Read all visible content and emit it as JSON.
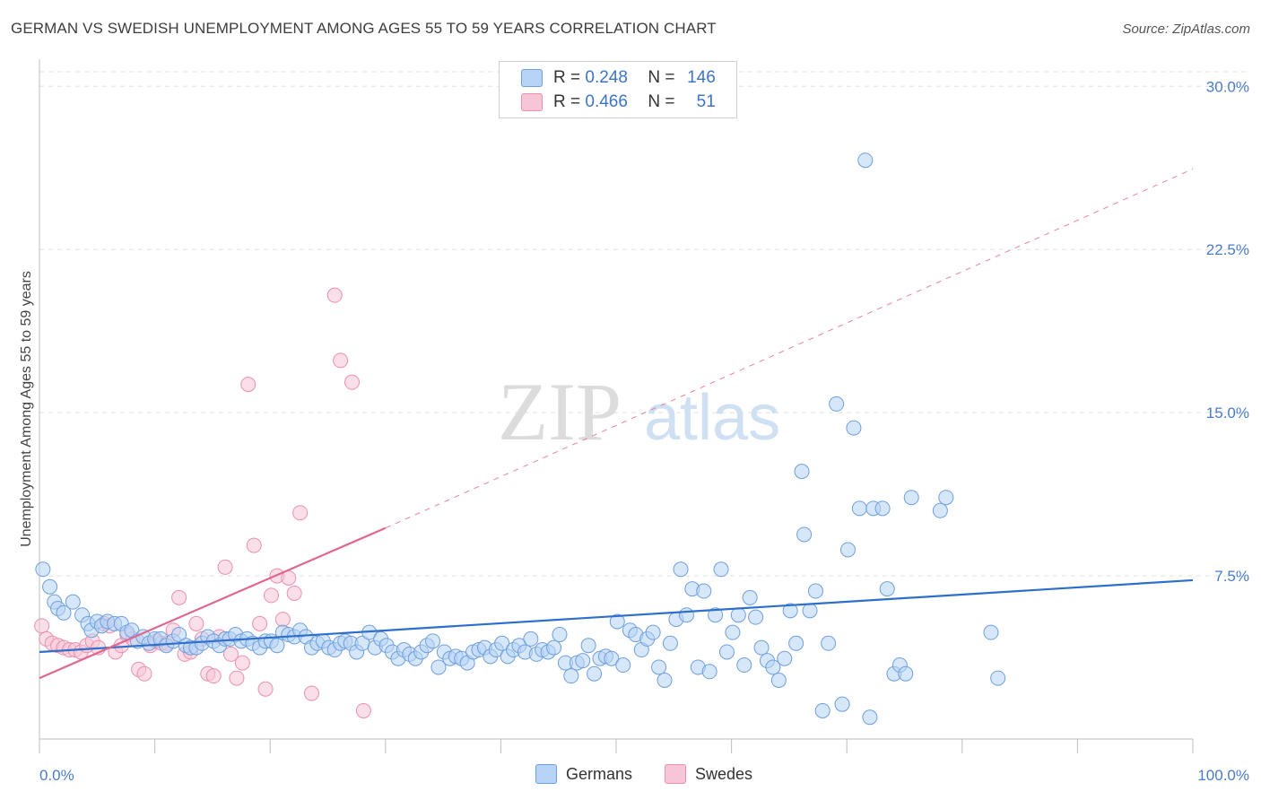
{
  "title": "GERMAN VS SWEDISH UNEMPLOYMENT AMONG AGES 55 TO 59 YEARS CORRELATION CHART",
  "source": "Source: ZipAtlas.com",
  "watermark": {
    "zip": "ZIP",
    "atlas": "atlas"
  },
  "legend_top": [
    {
      "r_label": "R =",
      "r_value": "0.248",
      "n_label": "N =",
      "n_value": "146"
    },
    {
      "r_label": "R =",
      "r_value": "0.466",
      "n_label": "N =",
      "n_value": "51"
    }
  ],
  "legend_bottom": {
    "germans": "Germans",
    "swedes": "Swedes"
  },
  "colors": {
    "germans_fill": "#b7d3f5",
    "germans_stroke": "#6f9fdc",
    "germans_line": "#2f6fcc",
    "swedes_fill": "#f8c5d6",
    "swedes_stroke": "#ea90ae",
    "swedes_line": "#e0678f",
    "tick_text": "#4a7cc9",
    "grid": "#e0e0e0"
  },
  "chart_data": {
    "type": "scatter",
    "title": "GERMAN VS SWEDISH UNEMPLOYMENT AMONG AGES 55 TO 59 YEARS CORRELATION CHART",
    "xlabel": "",
    "ylabel": "Unemployment Among Ages 55 to 59 years",
    "xlim": [
      0,
      100
    ],
    "ylim": [
      0,
      31
    ],
    "x_tick_labels": [
      "0.0%",
      "100.0%"
    ],
    "y_ticks": [
      7.5,
      15.0,
      22.5,
      30.0
    ],
    "y_tick_labels": [
      "7.5%",
      "15.0%",
      "22.5%",
      "30.0%"
    ],
    "grid": true,
    "legend_position": "top-center",
    "series": [
      {
        "name": "Germans",
        "points": [
          [
            0.3,
            7.8
          ],
          [
            0.9,
            7.0
          ],
          [
            1.3,
            6.3
          ],
          [
            1.6,
            6.0
          ],
          [
            2.1,
            5.8
          ],
          [
            2.9,
            6.3
          ],
          [
            3.7,
            5.7
          ],
          [
            4.2,
            5.3
          ],
          [
            4.5,
            5.0
          ],
          [
            5.0,
            5.4
          ],
          [
            5.4,
            5.2
          ],
          [
            5.9,
            5.4
          ],
          [
            6.5,
            5.3
          ],
          [
            7.1,
            5.3
          ],
          [
            7.6,
            4.9
          ],
          [
            8.0,
            5.0
          ],
          [
            8.5,
            4.5
          ],
          [
            9.0,
            4.7
          ],
          [
            9.5,
            4.4
          ],
          [
            10.0,
            4.6
          ],
          [
            10.5,
            4.6
          ],
          [
            11.0,
            4.3
          ],
          [
            11.6,
            4.5
          ],
          [
            12.1,
            4.8
          ],
          [
            12.7,
            4.3
          ],
          [
            13.1,
            4.2
          ],
          [
            13.6,
            4.2
          ],
          [
            14.1,
            4.4
          ],
          [
            14.6,
            4.7
          ],
          [
            15.1,
            4.5
          ],
          [
            15.6,
            4.3
          ],
          [
            16.1,
            4.6
          ],
          [
            16.5,
            4.6
          ],
          [
            17.0,
            4.8
          ],
          [
            17.5,
            4.5
          ],
          [
            18.0,
            4.6
          ],
          [
            18.5,
            4.4
          ],
          [
            19.1,
            4.2
          ],
          [
            19.6,
            4.5
          ],
          [
            20.1,
            4.5
          ],
          [
            20.6,
            4.3
          ],
          [
            21.1,
            4.9
          ],
          [
            21.6,
            4.8
          ],
          [
            22.1,
            4.7
          ],
          [
            22.6,
            5.0
          ],
          [
            23.1,
            4.7
          ],
          [
            23.6,
            4.2
          ],
          [
            24.1,
            4.4
          ],
          [
            24.6,
            4.5
          ],
          [
            25.1,
            4.2
          ],
          [
            25.6,
            4.1
          ],
          [
            26.1,
            4.4
          ],
          [
            26.5,
            4.5
          ],
          [
            27.0,
            4.4
          ],
          [
            27.5,
            4.0
          ],
          [
            28.0,
            4.4
          ],
          [
            28.6,
            4.9
          ],
          [
            29.1,
            4.2
          ],
          [
            29.6,
            4.6
          ],
          [
            30.1,
            4.3
          ],
          [
            30.6,
            4.0
          ],
          [
            31.1,
            3.7
          ],
          [
            31.6,
            4.1
          ],
          [
            32.1,
            3.9
          ],
          [
            32.6,
            3.7
          ],
          [
            33.1,
            4.0
          ],
          [
            33.6,
            4.3
          ],
          [
            34.1,
            4.5
          ],
          [
            34.6,
            3.3
          ],
          [
            35.1,
            4.0
          ],
          [
            35.6,
            3.7
          ],
          [
            36.1,
            3.8
          ],
          [
            36.6,
            3.7
          ],
          [
            37.1,
            3.5
          ],
          [
            37.6,
            4.0
          ],
          [
            38.1,
            4.1
          ],
          [
            38.6,
            4.2
          ],
          [
            39.1,
            3.8
          ],
          [
            39.6,
            4.1
          ],
          [
            40.1,
            4.4
          ],
          [
            40.6,
            3.8
          ],
          [
            41.1,
            4.1
          ],
          [
            41.6,
            4.3
          ],
          [
            42.1,
            4.0
          ],
          [
            42.6,
            4.6
          ],
          [
            43.1,
            3.9
          ],
          [
            43.6,
            4.1
          ],
          [
            44.1,
            4.0
          ],
          [
            44.6,
            4.2
          ],
          [
            45.1,
            4.8
          ],
          [
            45.6,
            3.5
          ],
          [
            46.1,
            2.9
          ],
          [
            46.6,
            3.5
          ],
          [
            47.1,
            3.6
          ],
          [
            47.6,
            4.3
          ],
          [
            48.1,
            3.0
          ],
          [
            48.6,
            3.7
          ],
          [
            49.1,
            3.8
          ],
          [
            49.6,
            3.7
          ],
          [
            50.1,
            5.4
          ],
          [
            50.6,
            3.4
          ],
          [
            51.2,
            5.0
          ],
          [
            51.7,
            4.8
          ],
          [
            52.2,
            4.1
          ],
          [
            52.7,
            4.6
          ],
          [
            53.2,
            4.9
          ],
          [
            53.7,
            3.3
          ],
          [
            54.2,
            2.7
          ],
          [
            54.7,
            4.4
          ],
          [
            55.2,
            5.5
          ],
          [
            55.6,
            7.8
          ],
          [
            56.1,
            5.7
          ],
          [
            56.6,
            6.9
          ],
          [
            57.1,
            3.3
          ],
          [
            57.6,
            6.8
          ],
          [
            58.1,
            3.1
          ],
          [
            58.6,
            5.7
          ],
          [
            59.1,
            7.8
          ],
          [
            59.6,
            4.0
          ],
          [
            60.1,
            4.9
          ],
          [
            60.6,
            5.7
          ],
          [
            61.1,
            3.4
          ],
          [
            61.6,
            6.5
          ],
          [
            62.1,
            5.6
          ],
          [
            62.6,
            4.2
          ],
          [
            63.1,
            3.6
          ],
          [
            63.6,
            3.3
          ],
          [
            64.1,
            2.7
          ],
          [
            64.6,
            3.7
          ],
          [
            65.1,
            5.9
          ],
          [
            65.6,
            4.4
          ],
          [
            66.1,
            12.3
          ],
          [
            66.3,
            9.4
          ],
          [
            66.8,
            5.9
          ],
          [
            67.3,
            6.8
          ],
          [
            67.9,
            1.3
          ],
          [
            68.4,
            4.4
          ],
          [
            69.1,
            15.4
          ],
          [
            69.6,
            1.6
          ],
          [
            70.1,
            8.7
          ],
          [
            70.6,
            14.3
          ],
          [
            71.1,
            10.6
          ],
          [
            71.6,
            26.6
          ],
          [
            72.0,
            1.0
          ],
          [
            72.3,
            10.6
          ],
          [
            73.1,
            10.6
          ],
          [
            73.5,
            6.9
          ],
          [
            74.1,
            3.0
          ],
          [
            74.6,
            3.4
          ],
          [
            75.1,
            3.0
          ],
          [
            75.6,
            11.1
          ],
          [
            78.1,
            10.5
          ],
          [
            78.6,
            11.1
          ],
          [
            82.5,
            4.9
          ],
          [
            83.1,
            2.8
          ]
        ]
      },
      {
        "name": "Swedes",
        "points": [
          [
            0.2,
            5.2
          ],
          [
            0.6,
            4.6
          ],
          [
            1.1,
            4.4
          ],
          [
            1.6,
            4.3
          ],
          [
            2.1,
            4.2
          ],
          [
            2.6,
            4.1
          ],
          [
            3.1,
            4.1
          ],
          [
            3.6,
            4.0
          ],
          [
            4.1,
            4.3
          ],
          [
            4.6,
            4.5
          ],
          [
            5.1,
            4.2
          ],
          [
            5.6,
            5.3
          ],
          [
            6.1,
            5.2
          ],
          [
            6.6,
            4.0
          ],
          [
            7.1,
            4.3
          ],
          [
            7.6,
            4.8
          ],
          [
            8.1,
            4.6
          ],
          [
            8.6,
            3.2
          ],
          [
            9.1,
            3.0
          ],
          [
            9.6,
            4.3
          ],
          [
            10.1,
            4.5
          ],
          [
            10.6,
            4.4
          ],
          [
            11.1,
            4.4
          ],
          [
            11.6,
            5.0
          ],
          [
            12.1,
            6.5
          ],
          [
            12.6,
            3.9
          ],
          [
            13.1,
            4.0
          ],
          [
            13.6,
            5.3
          ],
          [
            14.1,
            4.6
          ],
          [
            14.6,
            3.0
          ],
          [
            15.1,
            2.9
          ],
          [
            15.6,
            4.7
          ],
          [
            16.1,
            7.9
          ],
          [
            16.6,
            3.9
          ],
          [
            17.1,
            2.8
          ],
          [
            17.6,
            3.5
          ],
          [
            18.1,
            16.3
          ],
          [
            18.6,
            8.9
          ],
          [
            19.1,
            5.3
          ],
          [
            19.6,
            2.3
          ],
          [
            20.1,
            6.6
          ],
          [
            20.6,
            7.5
          ],
          [
            21.1,
            5.5
          ],
          [
            21.6,
            7.4
          ],
          [
            22.1,
            6.7
          ],
          [
            22.6,
            10.4
          ],
          [
            23.6,
            2.1
          ],
          [
            25.6,
            20.4
          ],
          [
            26.1,
            17.4
          ],
          [
            27.1,
            16.4
          ],
          [
            28.1,
            1.3
          ]
        ]
      }
    ],
    "trend_lines": [
      {
        "series": "Germans",
        "x": [
          0,
          100
        ],
        "y": [
          4.0,
          7.3
        ]
      },
      {
        "series": "Swedes",
        "x": [
          0,
          30
        ],
        "y": [
          2.8,
          9.7
        ]
      },
      {
        "series": "Swedes",
        "x": [
          30,
          100
        ],
        "y": [
          9.7,
          26.2
        ],
        "style": "dashed"
      }
    ]
  }
}
